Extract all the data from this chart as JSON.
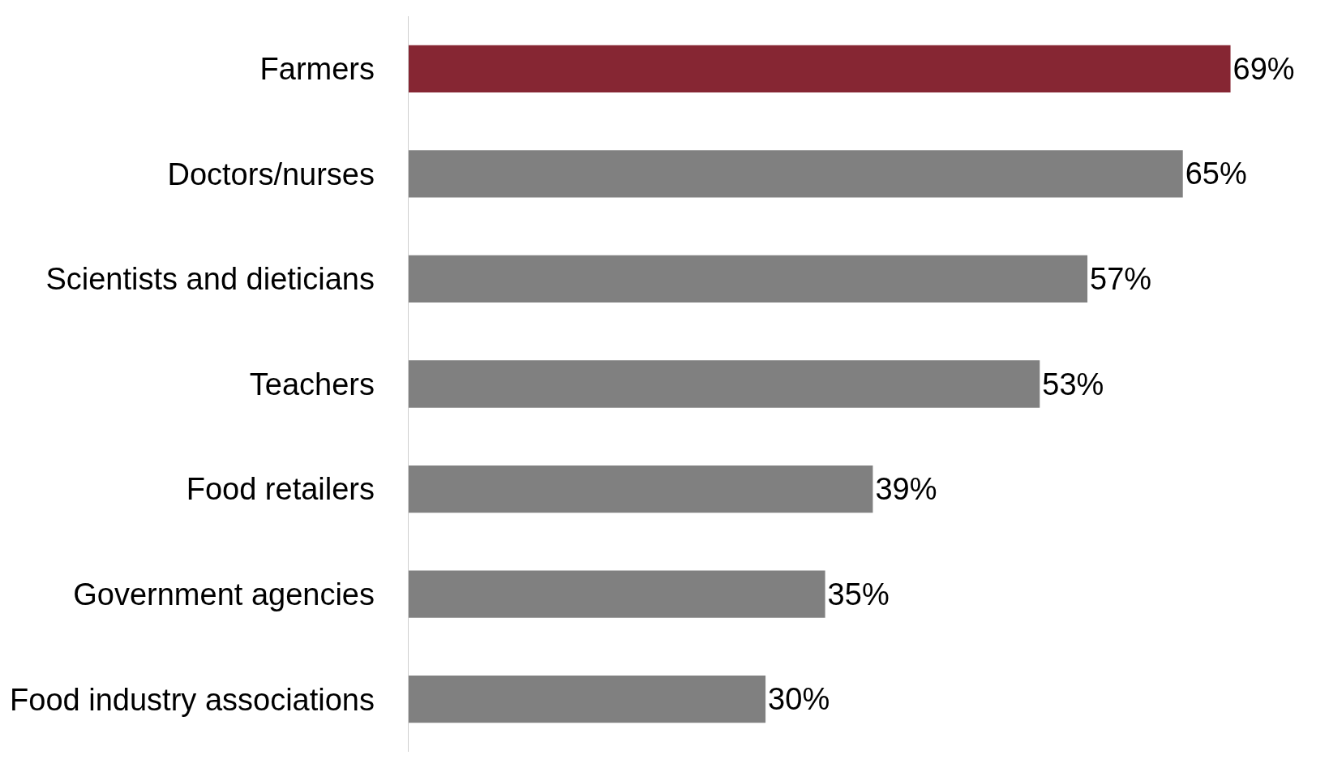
{
  "chart_data": {
    "type": "bar",
    "orientation": "horizontal",
    "categories": [
      "Farmers",
      "Doctors/nurses",
      "Scientists and dieticians",
      "Teachers",
      "Food retailers",
      "Government agencies",
      "Food industry associations"
    ],
    "values": [
      69,
      65,
      57,
      53,
      39,
      35,
      30
    ],
    "colors": [
      "#862633",
      "#808080",
      "#808080",
      "#808080",
      "#808080",
      "#808080",
      "#808080"
    ],
    "value_labels": [
      "69%",
      "65%",
      "57%",
      "53%",
      "39%",
      "35%",
      "30%"
    ],
    "grid": false,
    "legend": false
  }
}
